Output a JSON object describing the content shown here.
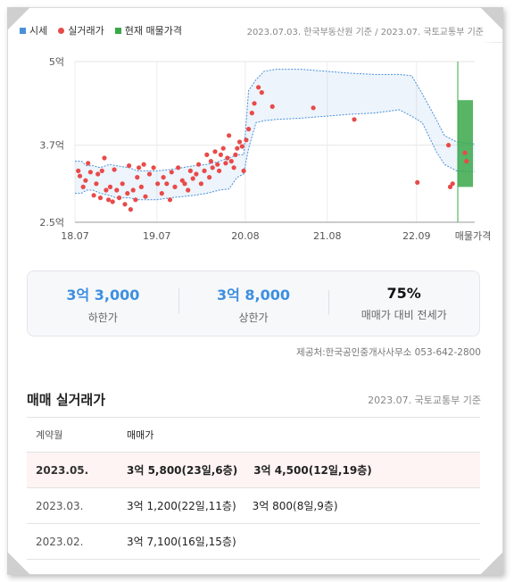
{
  "legend": {
    "items": [
      {
        "label": "시세",
        "color": "#4a90d9",
        "shape": "square"
      },
      {
        "label": "실거래가",
        "color": "#e84a4a",
        "shape": "dot"
      },
      {
        "label": "현재 매물가격",
        "color": "#3aa84a",
        "shape": "square"
      }
    ],
    "source": "2023.07.03. 한국부동산원 기준 / 2023.07. 국토교통부 기준"
  },
  "chart_data": {
    "type": "scatter",
    "y_axis": {
      "ticks": [
        "5억",
        "3.7억",
        "2.5억"
      ],
      "tick_values": [
        5.0,
        3.7,
        2.5
      ],
      "ylim": [
        2.5,
        5.0
      ]
    },
    "x_axis": {
      "ticks": [
        "18.07",
        "19.07",
        "20.08",
        "21.08",
        "22.09"
      ],
      "tick_values": [
        2018.54,
        2019.54,
        2020.62,
        2021.62,
        2022.71
      ],
      "xlim": [
        2018.54,
        2023.42
      ],
      "extra_label": "매물가격"
    },
    "grid": true,
    "series": [
      {
        "name": "시세",
        "kind": "band",
        "color": "#4a90d9",
        "points": [
          {
            "x": 2018.54,
            "low": 2.95,
            "high": 3.45
          },
          {
            "x": 2018.62,
            "low": 2.95,
            "high": 3.45
          },
          {
            "x": 2018.68,
            "low": 3.0,
            "high": 3.38
          },
          {
            "x": 2018.76,
            "low": 3.0,
            "high": 3.38
          },
          {
            "x": 2018.85,
            "low": 2.95,
            "high": 3.35
          },
          {
            "x": 2018.96,
            "low": 2.92,
            "high": 3.4
          },
          {
            "x": 2019.04,
            "low": 2.88,
            "high": 3.38
          },
          {
            "x": 2019.2,
            "low": 2.88,
            "high": 3.35
          },
          {
            "x": 2019.3,
            "low": 2.85,
            "high": 3.3
          },
          {
            "x": 2019.4,
            "low": 2.85,
            "high": 3.3
          },
          {
            "x": 2019.54,
            "low": 2.85,
            "high": 3.3
          },
          {
            "x": 2019.7,
            "low": 2.88,
            "high": 3.32
          },
          {
            "x": 2019.85,
            "low": 2.9,
            "high": 3.35
          },
          {
            "x": 2020.0,
            "low": 2.92,
            "high": 3.38
          },
          {
            "x": 2020.15,
            "low": 2.95,
            "high": 3.4
          },
          {
            "x": 2020.3,
            "low": 3.0,
            "high": 3.45
          },
          {
            "x": 2020.42,
            "low": 3.02,
            "high": 3.5
          },
          {
            "x": 2020.52,
            "low": 3.2,
            "high": 3.55
          },
          {
            "x": 2020.6,
            "low": 3.25,
            "high": 3.55
          },
          {
            "x": 2020.66,
            "low": 3.65,
            "high": 4.55
          },
          {
            "x": 2020.75,
            "low": 4.05,
            "high": 4.72
          },
          {
            "x": 2020.85,
            "low": 4.08,
            "high": 4.85
          },
          {
            "x": 2021.0,
            "low": 4.1,
            "high": 4.88
          },
          {
            "x": 2021.3,
            "low": 4.12,
            "high": 4.88
          },
          {
            "x": 2021.6,
            "low": 4.15,
            "high": 4.85
          },
          {
            "x": 2021.9,
            "low": 4.18,
            "high": 4.82
          },
          {
            "x": 2022.2,
            "low": 4.2,
            "high": 4.8
          },
          {
            "x": 2022.5,
            "low": 4.25,
            "high": 4.8
          },
          {
            "x": 2022.65,
            "low": 4.15,
            "high": 4.78
          },
          {
            "x": 2022.78,
            "low": 4.05,
            "high": 4.5
          },
          {
            "x": 2022.95,
            "low": 3.6,
            "high": 4.1
          },
          {
            "x": 2023.05,
            "low": 3.4,
            "high": 3.85
          },
          {
            "x": 2023.2,
            "low": 3.3,
            "high": 3.75
          },
          {
            "x": 2023.42,
            "low": 3.28,
            "high": 3.72
          }
        ]
      },
      {
        "name": "실거래가",
        "kind": "scatter",
        "color": "#e84a4a",
        "points": [
          {
            "x": 2018.58,
            "y": 3.3
          },
          {
            "x": 2018.6,
            "y": 3.22
          },
          {
            "x": 2018.64,
            "y": 3.05
          },
          {
            "x": 2018.67,
            "y": 3.15
          },
          {
            "x": 2018.7,
            "y": 3.42
          },
          {
            "x": 2018.73,
            "y": 3.28
          },
          {
            "x": 2018.77,
            "y": 2.92
          },
          {
            "x": 2018.8,
            "y": 3.1
          },
          {
            "x": 2018.82,
            "y": 3.25
          },
          {
            "x": 2018.85,
            "y": 2.88
          },
          {
            "x": 2018.87,
            "y": 3.3
          },
          {
            "x": 2018.9,
            "y": 3.5
          },
          {
            "x": 2018.92,
            "y": 3.0
          },
          {
            "x": 2018.95,
            "y": 2.85
          },
          {
            "x": 2018.97,
            "y": 3.05
          },
          {
            "x": 2019.0,
            "y": 2.82
          },
          {
            "x": 2019.02,
            "y": 3.32
          },
          {
            "x": 2019.05,
            "y": 3.0
          },
          {
            "x": 2019.08,
            "y": 2.88
          },
          {
            "x": 2019.12,
            "y": 3.1
          },
          {
            "x": 2019.15,
            "y": 2.78
          },
          {
            "x": 2019.18,
            "y": 2.95
          },
          {
            "x": 2019.2,
            "y": 3.38
          },
          {
            "x": 2019.22,
            "y": 2.7
          },
          {
            "x": 2019.25,
            "y": 3.0
          },
          {
            "x": 2019.28,
            "y": 2.85
          },
          {
            "x": 2019.3,
            "y": 3.2
          },
          {
            "x": 2019.32,
            "y": 3.35
          },
          {
            "x": 2019.35,
            "y": 3.05
          },
          {
            "x": 2019.38,
            "y": 3.4
          },
          {
            "x": 2019.4,
            "y": 2.9
          },
          {
            "x": 2019.45,
            "y": 3.25
          },
          {
            "x": 2019.5,
            "y": 3.35
          },
          {
            "x": 2019.55,
            "y": 3.1
          },
          {
            "x": 2019.6,
            "y": 2.95
          },
          {
            "x": 2019.62,
            "y": 3.2
          },
          {
            "x": 2019.66,
            "y": 3.1
          },
          {
            "x": 2019.7,
            "y": 2.85
          },
          {
            "x": 2019.72,
            "y": 3.28
          },
          {
            "x": 2019.76,
            "y": 3.05
          },
          {
            "x": 2019.8,
            "y": 3.35
          },
          {
            "x": 2019.85,
            "y": 3.15
          },
          {
            "x": 2019.88,
            "y": 3.1
          },
          {
            "x": 2019.92,
            "y": 3.0
          },
          {
            "x": 2019.95,
            "y": 3.3
          },
          {
            "x": 2019.98,
            "y": 3.18
          },
          {
            "x": 2020.02,
            "y": 3.25
          },
          {
            "x": 2020.05,
            "y": 3.4
          },
          {
            "x": 2020.08,
            "y": 3.1
          },
          {
            "x": 2020.12,
            "y": 3.3
          },
          {
            "x": 2020.15,
            "y": 3.55
          },
          {
            "x": 2020.18,
            "y": 3.2
          },
          {
            "x": 2020.2,
            "y": 3.45
          },
          {
            "x": 2020.22,
            "y": 3.35
          },
          {
            "x": 2020.25,
            "y": 3.6
          },
          {
            "x": 2020.28,
            "y": 3.4
          },
          {
            "x": 2020.3,
            "y": 3.3
          },
          {
            "x": 2020.32,
            "y": 3.55
          },
          {
            "x": 2020.35,
            "y": 3.65
          },
          {
            "x": 2020.38,
            "y": 3.42
          },
          {
            "x": 2020.4,
            "y": 3.5
          },
          {
            "x": 2020.42,
            "y": 3.85
          },
          {
            "x": 2020.45,
            "y": 3.45
          },
          {
            "x": 2020.48,
            "y": 3.35
          },
          {
            "x": 2020.5,
            "y": 3.55
          },
          {
            "x": 2020.52,
            "y": 3.65
          },
          {
            "x": 2020.55,
            "y": 3.75
          },
          {
            "x": 2020.58,
            "y": 3.68
          },
          {
            "x": 2020.6,
            "y": 3.3
          },
          {
            "x": 2020.63,
            "y": 3.78
          },
          {
            "x": 2020.66,
            "y": 3.95
          },
          {
            "x": 2020.7,
            "y": 4.2
          },
          {
            "x": 2020.73,
            "y": 4.35
          },
          {
            "x": 2020.78,
            "y": 4.6
          },
          {
            "x": 2020.82,
            "y": 4.52
          },
          {
            "x": 2020.95,
            "y": 4.3
          },
          {
            "x": 2021.45,
            "y": 4.28
          },
          {
            "x": 2021.95,
            "y": 4.1
          },
          {
            "x": 2022.72,
            "y": 3.12
          },
          {
            "x": 2023.1,
            "y": 3.7
          },
          {
            "x": 2023.12,
            "y": 3.05
          },
          {
            "x": 2023.15,
            "y": 3.1
          },
          {
            "x": 2023.3,
            "y": 3.58
          },
          {
            "x": 2023.32,
            "y": 3.45
          }
        ]
      },
      {
        "name": "현재 매물가격",
        "kind": "bar-range",
        "color": "#3aa84a",
        "low": 3.05,
        "high": 4.4
      }
    ]
  },
  "summary": {
    "low": {
      "value": "3억 3,000",
      "label": "하한가"
    },
    "high": {
      "value": "3억 8,000",
      "label": "상한가"
    },
    "ratio": {
      "value": "75%",
      "label": "매매가 대비 전세가"
    }
  },
  "provider": "제공처:한국공인중개사사무소 053-642-2800",
  "deals": {
    "title": "매매 실거래가",
    "basis": "2023.07. 국토교통부 기준",
    "columns": [
      "계약월",
      "매매가"
    ],
    "rows": [
      {
        "month": "2023.05.",
        "entries": [
          "3억 5,800(23일,6층)",
          "3억 4,500(12일,19층)"
        ],
        "highlight": true
      },
      {
        "month": "2023.03.",
        "entries": [
          "3억 1,200(22일,11층)",
          "3억 800(8일,9층)"
        ],
        "highlight": false
      },
      {
        "month": "2023.02.",
        "entries": [
          "3억 7,100(16일,15층)"
        ],
        "highlight": false
      }
    ]
  }
}
